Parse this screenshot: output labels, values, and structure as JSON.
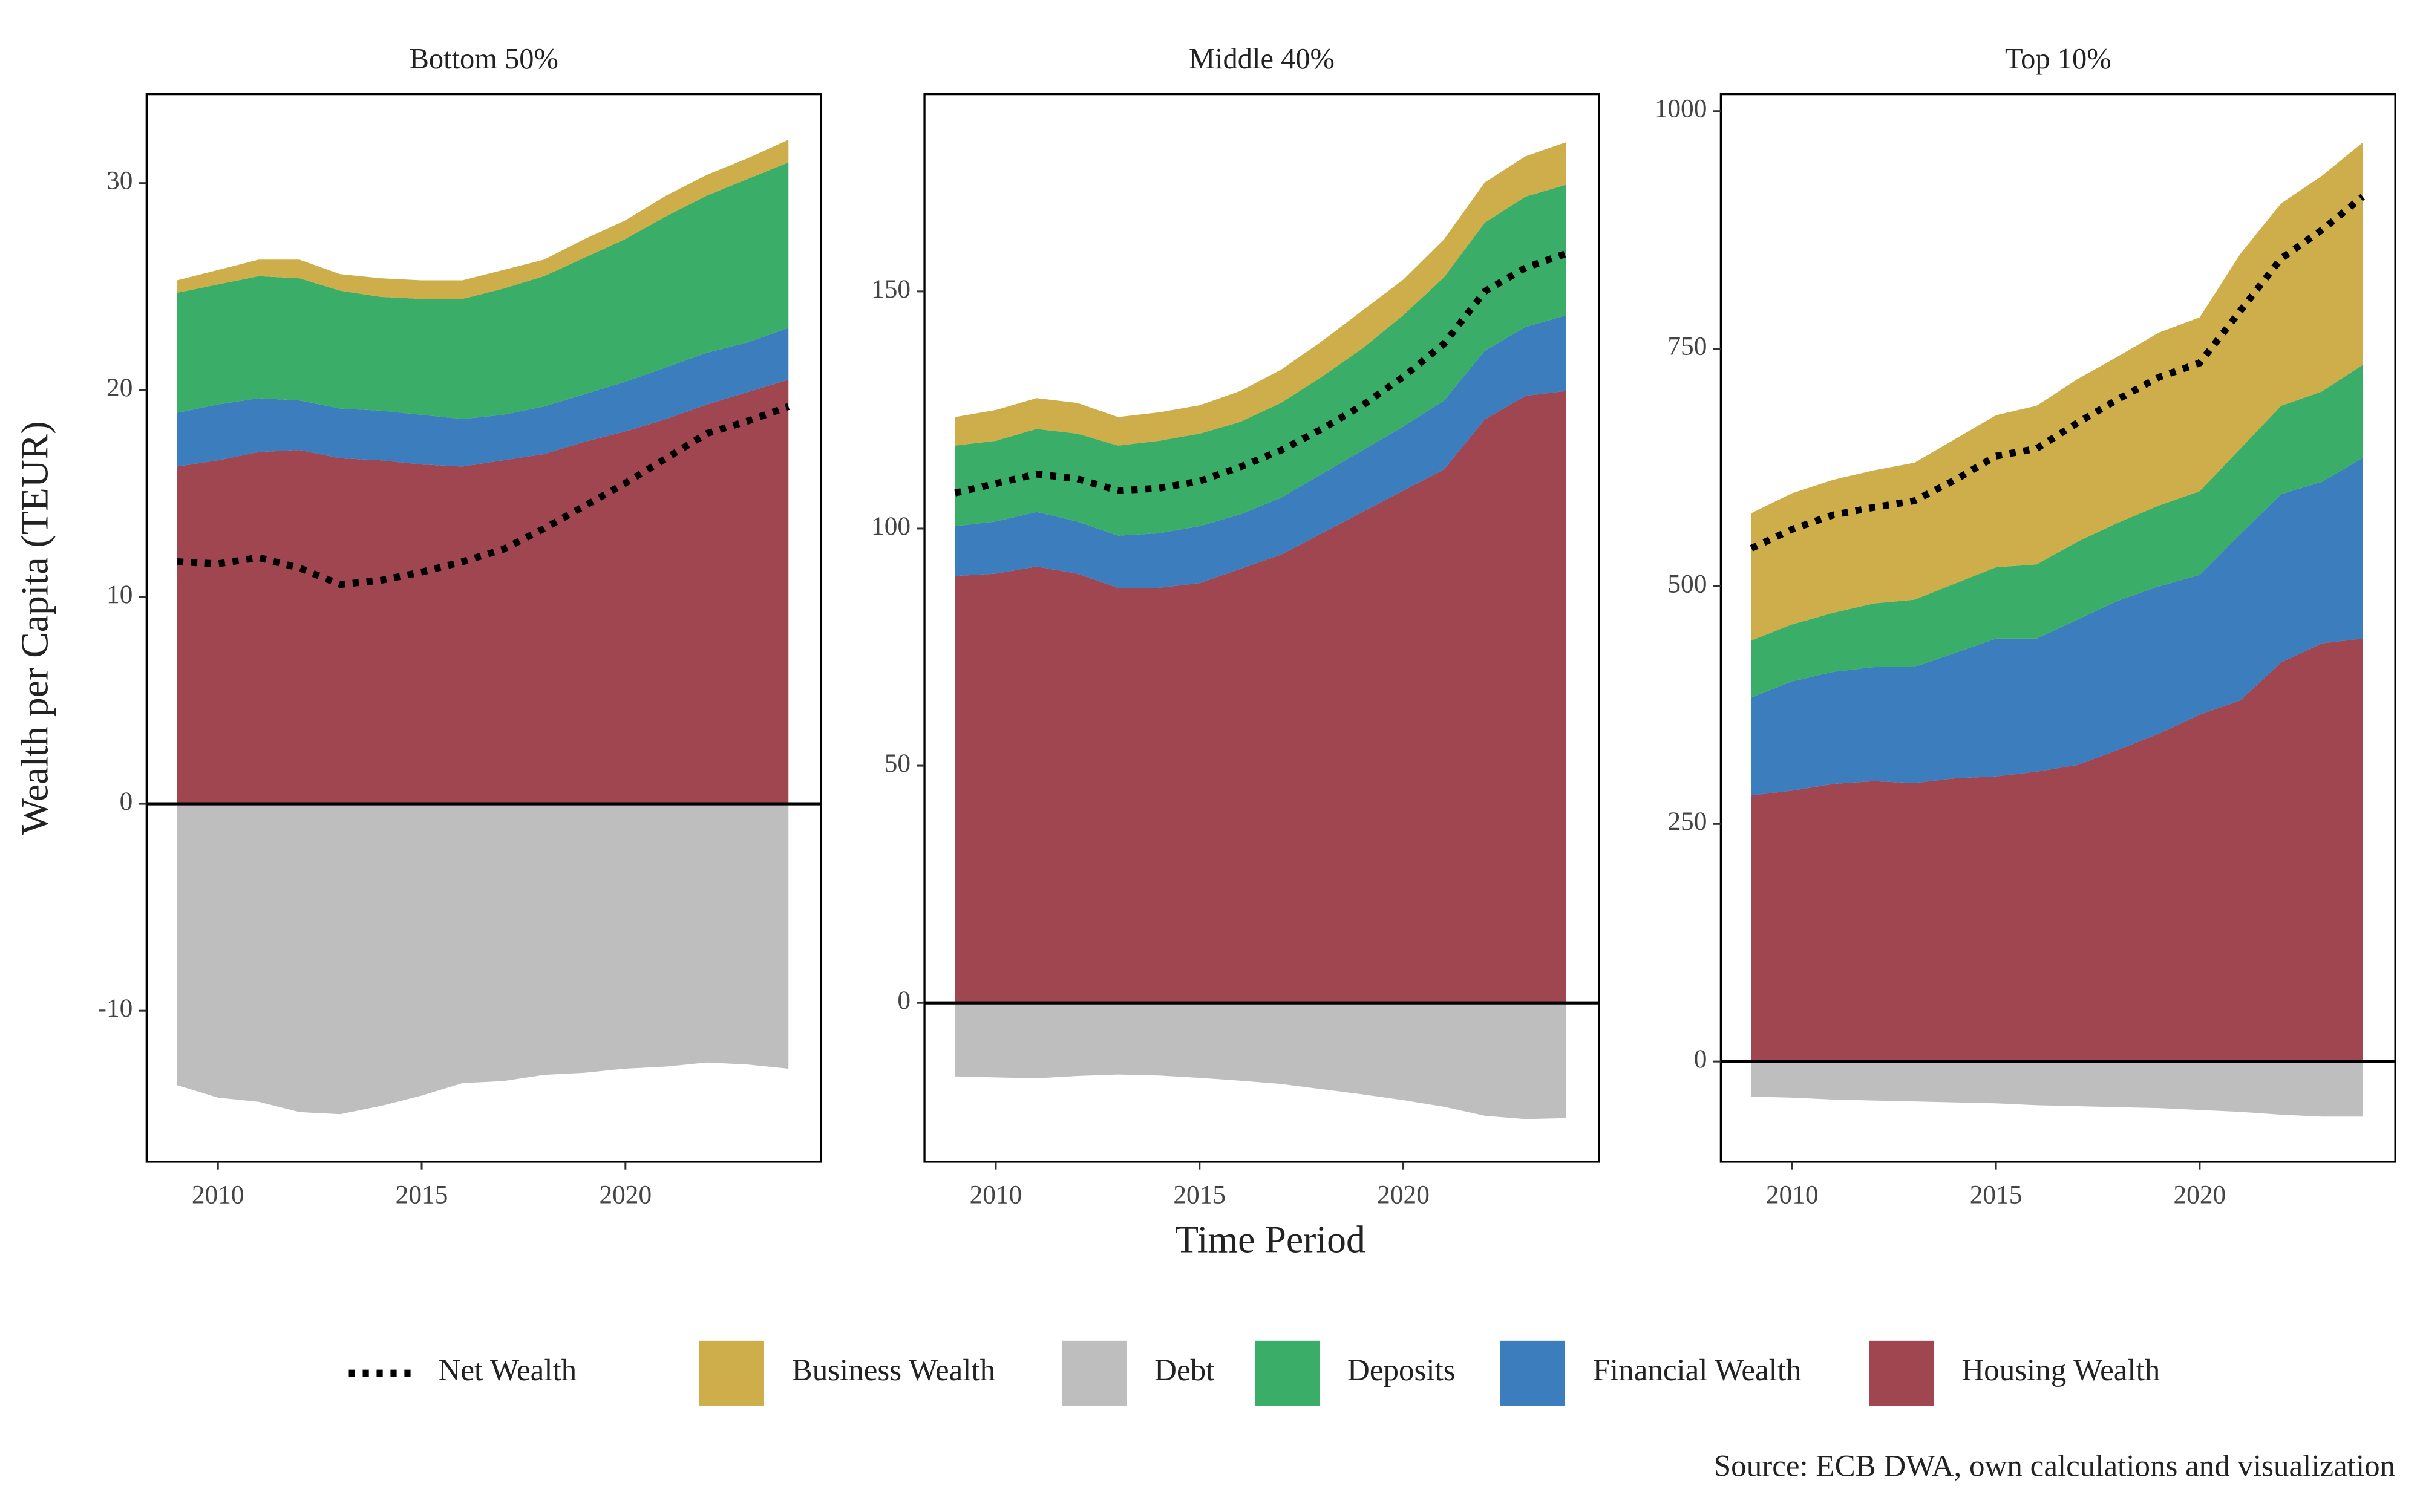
{
  "y_label": "Wealth per Capita (TEUR)",
  "x_label": "Time Period",
  "source": "Source: ECB DWA, own calculations and visualization",
  "chart_data": [
    {
      "type": "area",
      "title": "Bottom 50%",
      "x": [
        2009,
        2010,
        2011,
        2012,
        2013,
        2014,
        2015,
        2016,
        2017,
        2018,
        2019,
        2020,
        2021,
        2022,
        2023,
        2024
      ],
      "xlim": [
        2008.25,
        2024.8
      ],
      "xticks": [
        2010,
        2015,
        2020
      ],
      "ylim": [
        -17.3,
        34.3
      ],
      "yticks": [
        -10,
        0,
        10,
        20,
        30
      ],
      "grid": false,
      "series": [
        {
          "name": "Net Wealth",
          "type": "line",
          "style": "dotted",
          "color": "#000000",
          "values": [
            11.7,
            11.6,
            11.9,
            11.4,
            10.6,
            10.8,
            11.2,
            11.7,
            12.3,
            13.3,
            14.4,
            15.5,
            16.7,
            17.9,
            18.5,
            19.2
          ]
        },
        {
          "name": "Business Wealth",
          "type": "area",
          "color": "#cdae4a",
          "values": [
            0.6,
            0.7,
            0.8,
            0.9,
            0.8,
            0.9,
            0.9,
            0.9,
            0.9,
            0.8,
            0.9,
            0.9,
            1.0,
            1.0,
            1.0,
            1.1
          ]
        },
        {
          "name": "Debt",
          "type": "area",
          "color": "#bebebe",
          "values": [
            -13.6,
            -14.2,
            -14.4,
            -14.9,
            -15.0,
            -14.6,
            -14.1,
            -13.5,
            -13.4,
            -13.1,
            -13.0,
            -12.8,
            -12.7,
            -12.5,
            -12.6,
            -12.8
          ]
        },
        {
          "name": "Deposits",
          "type": "area",
          "color": "#3aae68",
          "values": [
            5.8,
            5.8,
            5.9,
            5.9,
            5.7,
            5.5,
            5.6,
            5.8,
            6.1,
            6.3,
            6.6,
            6.9,
            7.3,
            7.6,
            7.9,
            8.0
          ]
        },
        {
          "name": "Financial Wealth",
          "type": "area",
          "color": "#3b7dbd",
          "values": [
            2.6,
            2.7,
            2.6,
            2.4,
            2.4,
            2.4,
            2.4,
            2.3,
            2.2,
            2.3,
            2.3,
            2.4,
            2.5,
            2.5,
            2.4,
            2.5
          ]
        },
        {
          "name": "Housing Wealth",
          "type": "area",
          "color": "#9f4650",
          "values": [
            16.3,
            16.6,
            17.0,
            17.1,
            16.7,
            16.6,
            16.4,
            16.3,
            16.6,
            16.9,
            17.5,
            18.0,
            18.6,
            19.3,
            19.9,
            20.5
          ]
        }
      ]
    },
    {
      "type": "area",
      "title": "Middle 40%",
      "x": [
        2009,
        2010,
        2011,
        2012,
        2013,
        2014,
        2015,
        2016,
        2017,
        2018,
        2019,
        2020,
        2021,
        2022,
        2023,
        2024
      ],
      "xlim": [
        2008.25,
        2024.8
      ],
      "xticks": [
        2010,
        2015,
        2020
      ],
      "ylim": [
        -33.5,
        191.6
      ],
      "yticks": [
        0,
        50,
        100,
        150
      ],
      "grid": false,
      "series": [
        {
          "name": "Net Wealth",
          "type": "line",
          "style": "dotted",
          "color": "#000000",
          "values": [
            107.5,
            109.5,
            111.5,
            110.5,
            108,
            108.5,
            110,
            113,
            116.5,
            121,
            126,
            132,
            139,
            150,
            155,
            158
          ]
        },
        {
          "name": "Business Wealth",
          "type": "area",
          "color": "#cdae4a",
          "values": [
            6,
            6.5,
            6.5,
            6.5,
            6,
            6,
            6,
            6.5,
            7,
            7.5,
            8,
            7.5,
            8,
            8.5,
            8.5,
            9
          ]
        },
        {
          "name": "Debt",
          "type": "area",
          "color": "#bebebe",
          "values": [
            -15.5,
            -15.7,
            -15.9,
            -15.4,
            -15.1,
            -15.3,
            -15.8,
            -16.4,
            -17.1,
            -18.2,
            -19.3,
            -20.5,
            -21.9,
            -23.8,
            -24.5,
            -24.3
          ]
        },
        {
          "name": "Deposits",
          "type": "area",
          "color": "#3aae68",
          "values": [
            17,
            17,
            17.5,
            18.5,
            19,
            19.5,
            19.5,
            19.5,
            20,
            20.5,
            21.5,
            23.5,
            26,
            27,
            27.5,
            27.5
          ]
        },
        {
          "name": "Financial Wealth",
          "type": "area",
          "color": "#3b7dbd",
          "values": [
            10.5,
            11,
            11.5,
            11,
            11,
            11.5,
            12,
            11.5,
            12,
            12.5,
            13,
            13.5,
            14.5,
            14.5,
            14.5,
            16
          ]
        },
        {
          "name": "Housing Wealth",
          "type": "area",
          "color": "#9f4650",
          "values": [
            90,
            90.5,
            92,
            90.5,
            87.5,
            87.5,
            88.5,
            91.5,
            94.5,
            99,
            103.5,
            108,
            112.5,
            123,
            128,
            129
          ]
        }
      ]
    },
    {
      "type": "area",
      "title": "Top 10%",
      "x": [
        2009,
        2010,
        2011,
        2012,
        2013,
        2014,
        2015,
        2016,
        2017,
        2018,
        2019,
        2020,
        2021,
        2022,
        2023,
        2024
      ],
      "xlim": [
        2008.25,
        2024.8
      ],
      "xticks": [
        2010,
        2015,
        2020
      ],
      "ylim": [
        -105.5,
        1017.9
      ],
      "yticks": [
        0,
        250,
        500,
        750,
        1000
      ],
      "grid": false,
      "series": [
        {
          "name": "Net Wealth",
          "type": "line",
          "style": "dotted",
          "color": "#000000",
          "values": [
            540,
            560,
            575,
            583,
            590,
            612,
            637,
            645,
            672,
            697,
            720,
            735,
            790,
            845,
            875,
            910
          ]
        },
        {
          "name": "Business Wealth",
          "type": "area",
          "color": "#cdae4a",
          "values": [
            134,
            138,
            140,
            140,
            144,
            152,
            160,
            167,
            171,
            175,
            182,
            183,
            205,
            213,
            227,
            234
          ]
        },
        {
          "name": "Debt",
          "type": "area",
          "color": "#bebebe",
          "values": [
            -37,
            -38,
            -40,
            -41,
            -42,
            -43,
            -44,
            -46,
            -47,
            -48,
            -49,
            -51,
            -53,
            -56,
            -58,
            -58
          ]
        },
        {
          "name": "Deposits",
          "type": "area",
          "color": "#3aae68",
          "values": [
            60,
            60,
            62,
            67,
            71,
            73,
            75,
            78,
            82,
            82,
            85,
            88,
            90,
            93,
            95,
            98
          ]
        },
        {
          "name": "Financial Wealth",
          "type": "area",
          "color": "#3b7dbd",
          "values": [
            103,
            115,
            118,
            120,
            122,
            132,
            145,
            140,
            153,
            157,
            155,
            147,
            175,
            177,
            170,
            190
          ]
        },
        {
          "name": "Housing Wealth",
          "type": "area",
          "color": "#9f4650",
          "values": [
            280,
            285,
            292,
            295,
            293,
            298,
            300,
            305,
            312,
            328,
            345,
            365,
            380,
            420,
            440,
            445
          ]
        }
      ]
    }
  ]
}
